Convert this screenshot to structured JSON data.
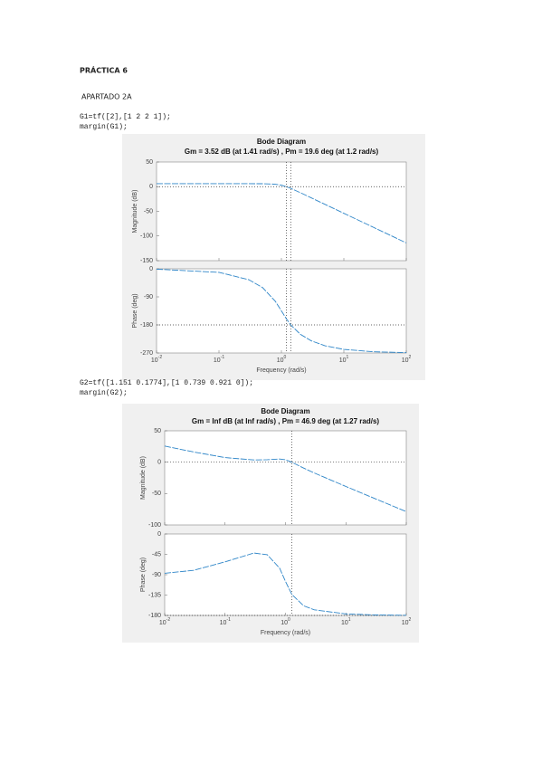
{
  "header": {
    "title": "PRÁCTICA 6",
    "section": "APARTADO 2A"
  },
  "figures": [
    {
      "code": [
        "G1=tf([2],[1 2 2 1]);",
        "margin(G1);"
      ],
      "title": "Bode Diagram",
      "subtitle": "Gm = 3.52 dB (at 1.41 rad/s) ,  Pm = 19.6 deg (at 1.2 rad/s)",
      "xlabel": "Frequency  (rad/s)",
      "xlim": [
        0.01,
        100
      ],
      "xticks": [
        {
          "value": 0.01,
          "label": "10",
          "power": "-2"
        },
        {
          "value": 0.1,
          "label": "10",
          "power": "-1"
        },
        {
          "value": 1,
          "label": "10",
          "power": "0"
        },
        {
          "value": 10,
          "label": "10",
          "power": "1"
        },
        {
          "value": 100,
          "label": "10",
          "power": "2"
        }
      ],
      "margin_x": [
        1.41,
        1.2
      ],
      "x": [
        0.01,
        0.1,
        0.3,
        0.5,
        0.8,
        1,
        1.2,
        1.41,
        2,
        3,
        5,
        10,
        30,
        100
      ],
      "panels": [
        {
          "ylabel": "Magnitude (dB)",
          "ylim": [
            -150,
            50
          ],
          "yticks": [
            -150,
            -100,
            -50,
            0,
            50
          ],
          "ref": 0,
          "values": [
            6.02,
            6.02,
            6.02,
            5.95,
            5.01,
            3.01,
            0.02,
            -3.45,
            -12.1,
            -22.6,
            -35.9,
            -54.0,
            -82.6,
            -114.0
          ]
        },
        {
          "ylabel": "Phase (deg)",
          "ylim": [
            -270,
            0
          ],
          "yticks": [
            -270,
            -180,
            -90,
            0
          ],
          "ref": -180,
          "values": [
            -1.15,
            -11.5,
            -34.9,
            -60.3,
            -104.4,
            -135,
            -160.3,
            -180,
            -209.7,
            -231.0,
            -246.9,
            -258.5,
            -266.2,
            -268.9
          ]
        }
      ]
    },
    {
      "code": [
        "G2=tf([1.151 0.1774],[1 0.739 0.921 0]);",
        "margin(G2);"
      ],
      "title": "Bode Diagram",
      "subtitle": "Gm = Inf dB (at Inf rad/s) ,  Pm = 46.9 deg (at 1.27 rad/s)",
      "xlabel": "Frequency  (rad/s)",
      "xlim": [
        0.01,
        100
      ],
      "xticks": [
        {
          "value": 0.01,
          "label": "10",
          "power": "-2"
        },
        {
          "value": 0.1,
          "label": "10",
          "power": "-1"
        },
        {
          "value": 1,
          "label": "10",
          "power": "0"
        },
        {
          "value": 10,
          "label": "10",
          "power": "1"
        },
        {
          "value": 100,
          "label": "10",
          "power": "2"
        }
      ],
      "margin_x": [
        1.27
      ],
      "x": [
        0.01,
        0.03,
        0.1,
        0.3,
        0.5,
        0.8,
        1,
        1.27,
        2,
        3,
        10,
        30,
        100
      ],
      "panels": [
        {
          "ylabel": "Magnitude (dB)",
          "ylim": [
            -100,
            50
          ],
          "yticks": [
            -100,
            -50,
            0,
            50
          ],
          "ref": 0,
          "values": [
            25.7,
            16.3,
            7.29,
            3.55,
            3.93,
            5.07,
            3.9,
            -0.05,
            -9.42,
            -17.2,
            -38.7,
            -57.9,
            -78.8
          ]
        },
        {
          "ylabel": "Phase (deg)",
          "ylim": [
            -180,
            0
          ],
          "yticks": [
            -180,
            -135,
            -90,
            -45,
            0
          ],
          "ref": -180,
          "values": [
            -86.8,
            -80.4,
            -61.6,
            -42.1,
            -45.9,
            -75.5,
            -104.9,
            -133.3,
            -158.8,
            -167.6,
            -176.6,
            -178.9,
            -179.7
          ]
        }
      ]
    }
  ]
}
